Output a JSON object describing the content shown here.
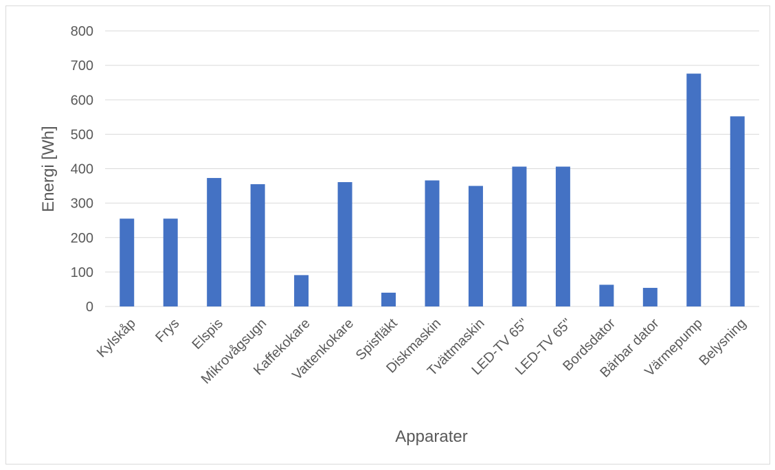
{
  "chart_data": {
    "type": "bar",
    "title": "",
    "xlabel": "Apparater",
    "ylabel": "Energi [Wh]",
    "ylim": [
      0,
      800
    ],
    "yticks": [
      0,
      100,
      200,
      300,
      400,
      500,
      600,
      700,
      800
    ],
    "grid": true,
    "legend": "none",
    "bar_color": "#4472C4",
    "grid_color": "#d9d9d9",
    "categories": [
      "Kylskåp",
      "Frys",
      "Elspis",
      "Mikrovågsugn",
      "Kaffekokare",
      "Vattenkokare",
      "Spisfläkt",
      "Diskmaskin",
      "Tvättmaskin",
      "LED-TV 65\"",
      "LED-TV 65\"",
      "Bordsdator",
      "Bärbar dator",
      "Värmepump",
      "Belysning"
    ],
    "values": [
      255,
      255,
      373,
      355,
      91,
      361,
      40,
      366,
      350,
      406,
      406,
      63,
      54,
      676,
      552
    ]
  }
}
